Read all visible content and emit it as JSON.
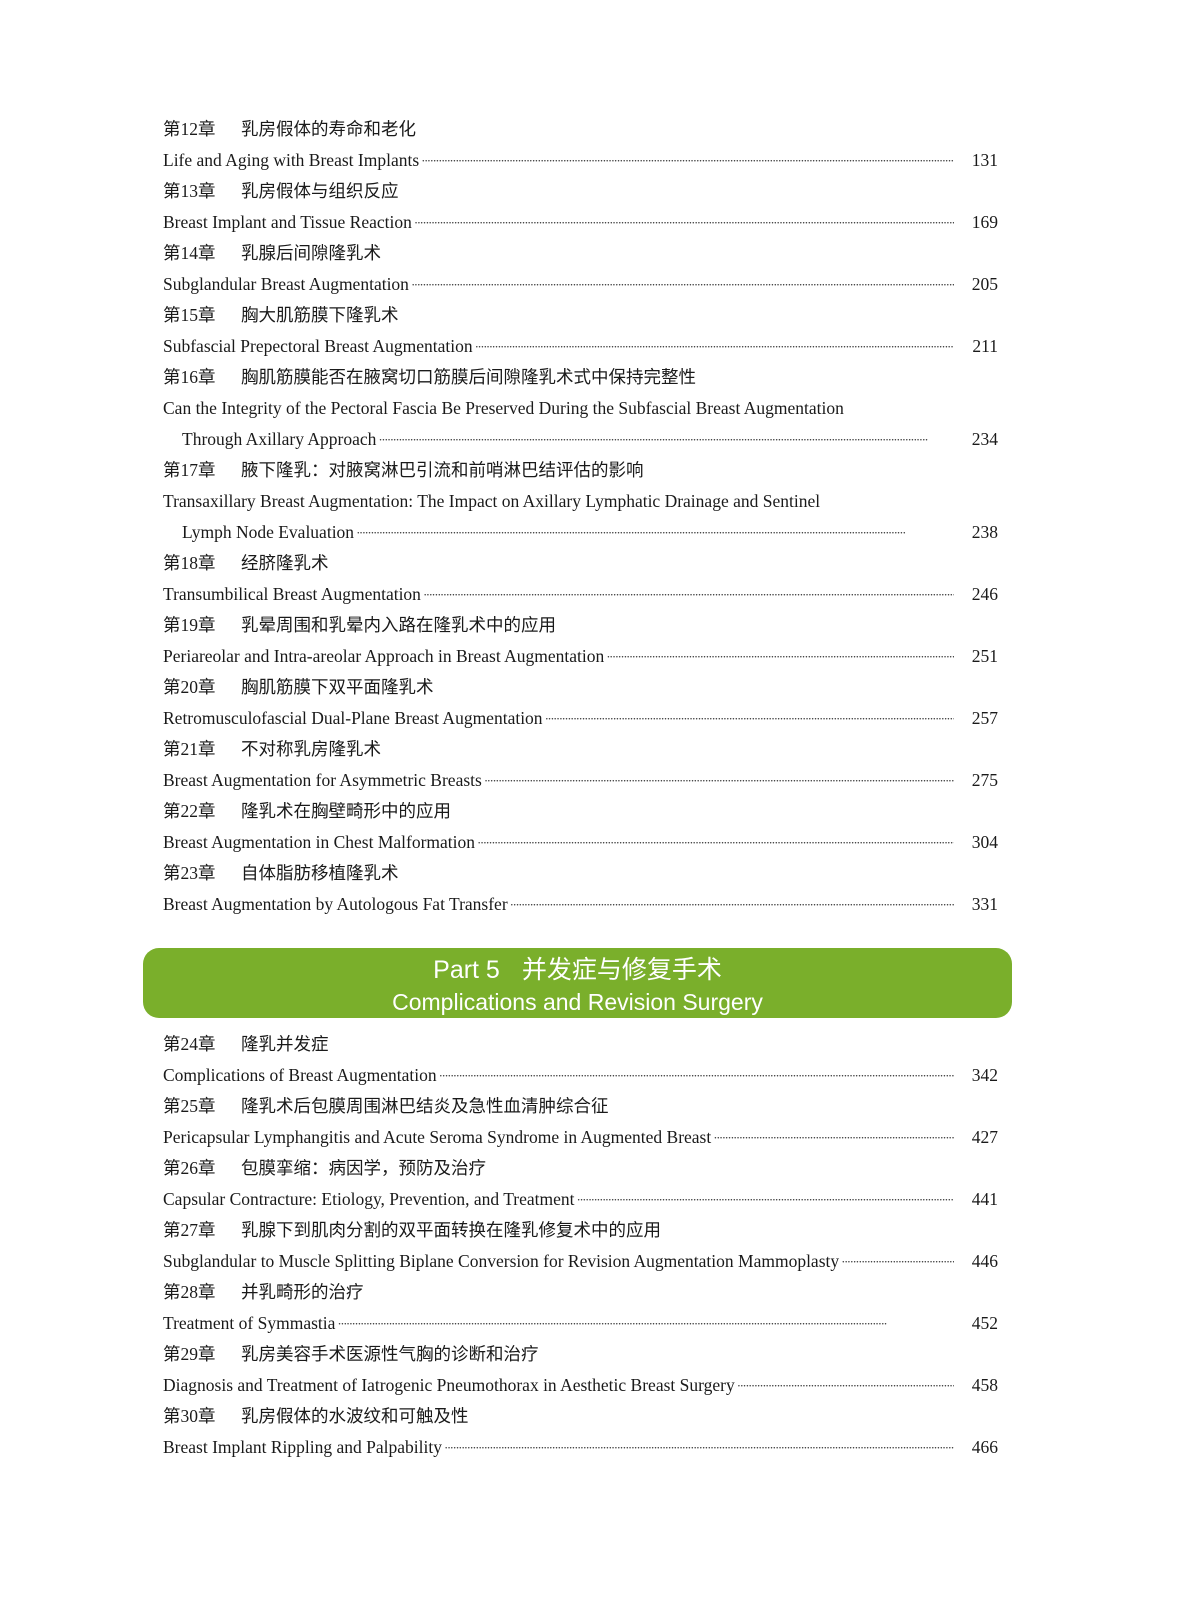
{
  "section_before": [
    {
      "num": "第12章",
      "cn": "乳房假体的寿命和老化",
      "en": [
        "Life and Aging with Breast Implants"
      ],
      "page": "131"
    },
    {
      "num": "第13章",
      "cn": "乳房假体与组织反应",
      "en": [
        "Breast Implant and Tissue Reaction"
      ],
      "page": "169"
    },
    {
      "num": "第14章",
      "cn": "乳腺后间隙隆乳术",
      "en": [
        "Subglandular Breast Augmentation"
      ],
      "page": "205"
    },
    {
      "num": "第15章",
      "cn": "胸大肌筋膜下隆乳术",
      "en": [
        "Subfascial Prepectoral Breast Augmentation"
      ],
      "page": "211"
    },
    {
      "num": "第16章",
      "cn": "胸肌筋膜能否在腋窝切口筋膜后间隙隆乳术式中保持完整性",
      "en": [
        "Can the Integrity of the Pectoral Fascia Be Preserved During the Subfascial Breast Augmentation",
        "Through Axillary Approach"
      ],
      "page": "234"
    },
    {
      "num": "第17章",
      "cn": "腋下隆乳：对腋窝淋巴引流和前哨淋巴结评估的影响",
      "en": [
        "Transaxillary Breast Augmentation: The Impact on Axillary Lymphatic Drainage and Sentinel",
        "Lymph Node Evaluation"
      ],
      "page": "238"
    },
    {
      "num": "第18章",
      "cn": "经脐隆乳术",
      "en": [
        "Transumbilical Breast Augmentation"
      ],
      "page": "246"
    },
    {
      "num": "第19章",
      "cn": "乳晕周围和乳晕内入路在隆乳术中的应用",
      "en": [
        "Periareolar and Intra-areolar Approach in Breast Augmentation"
      ],
      "page": "251"
    },
    {
      "num": "第20章",
      "cn": "胸肌筋膜下双平面隆乳术",
      "en": [
        "Retromusculofascial Dual-Plane Breast Augmentation"
      ],
      "page": "257"
    },
    {
      "num": "第21章",
      "cn": "不对称乳房隆乳术",
      "en": [
        "Breast Augmentation for Asymmetric Breasts"
      ],
      "page": "275"
    },
    {
      "num": "第22章",
      "cn": "隆乳术在胸壁畸形中的应用",
      "en": [
        "Breast Augmentation in Chest Malformation"
      ],
      "page": "304"
    },
    {
      "num": "第23章",
      "cn": "自体脂肪移植隆乳术",
      "en": [
        "Breast Augmentation by Autologous Fat Transfer"
      ],
      "page": "331"
    }
  ],
  "part": {
    "label": "Part 5",
    "title_cn": "并发症与修复手术",
    "title_en": "Complications and Revision Surgery",
    "color": "#7aaf2b"
  },
  "section_part5": [
    {
      "num": "第24章",
      "cn": "隆乳并发症",
      "en": [
        "Complications of Breast Augmentation"
      ],
      "page": "342"
    },
    {
      "num": "第25章",
      "cn": "隆乳术后包膜周围淋巴结炎及急性血清肿综合征",
      "en": [
        "Pericapsular Lymphangitis and Acute Seroma Syndrome in Augmented Breast"
      ],
      "page": "427"
    },
    {
      "num": "第26章",
      "cn": "包膜挛缩：病因学，预防及治疗",
      "en": [
        "Capsular Contracture: Etiology, Prevention, and Treatment"
      ],
      "page": "441"
    },
    {
      "num": "第27章",
      "cn": "乳腺下到肌肉分割的双平面转换在隆乳修复术中的应用",
      "en": [
        "Subglandular to Muscle Splitting Biplane Conversion for Revision Augmentation Mammoplasty"
      ],
      "page": "446"
    },
    {
      "num": "第28章",
      "cn": "并乳畸形的治疗",
      "en": [
        "Treatment of Symmastia"
      ],
      "page": "452"
    },
    {
      "num": "第29章",
      "cn": "乳房美容手术医源性气胸的诊断和治疗",
      "en": [
        "Diagnosis and Treatment of Iatrogenic Pneumothorax in Aesthetic Breast Surgery"
      ],
      "page": "458"
    },
    {
      "num": "第30章",
      "cn": "乳房假体的水波纹和可触及性",
      "en": [
        "Breast Implant Rippling and Palpability"
      ],
      "page": "466"
    }
  ]
}
